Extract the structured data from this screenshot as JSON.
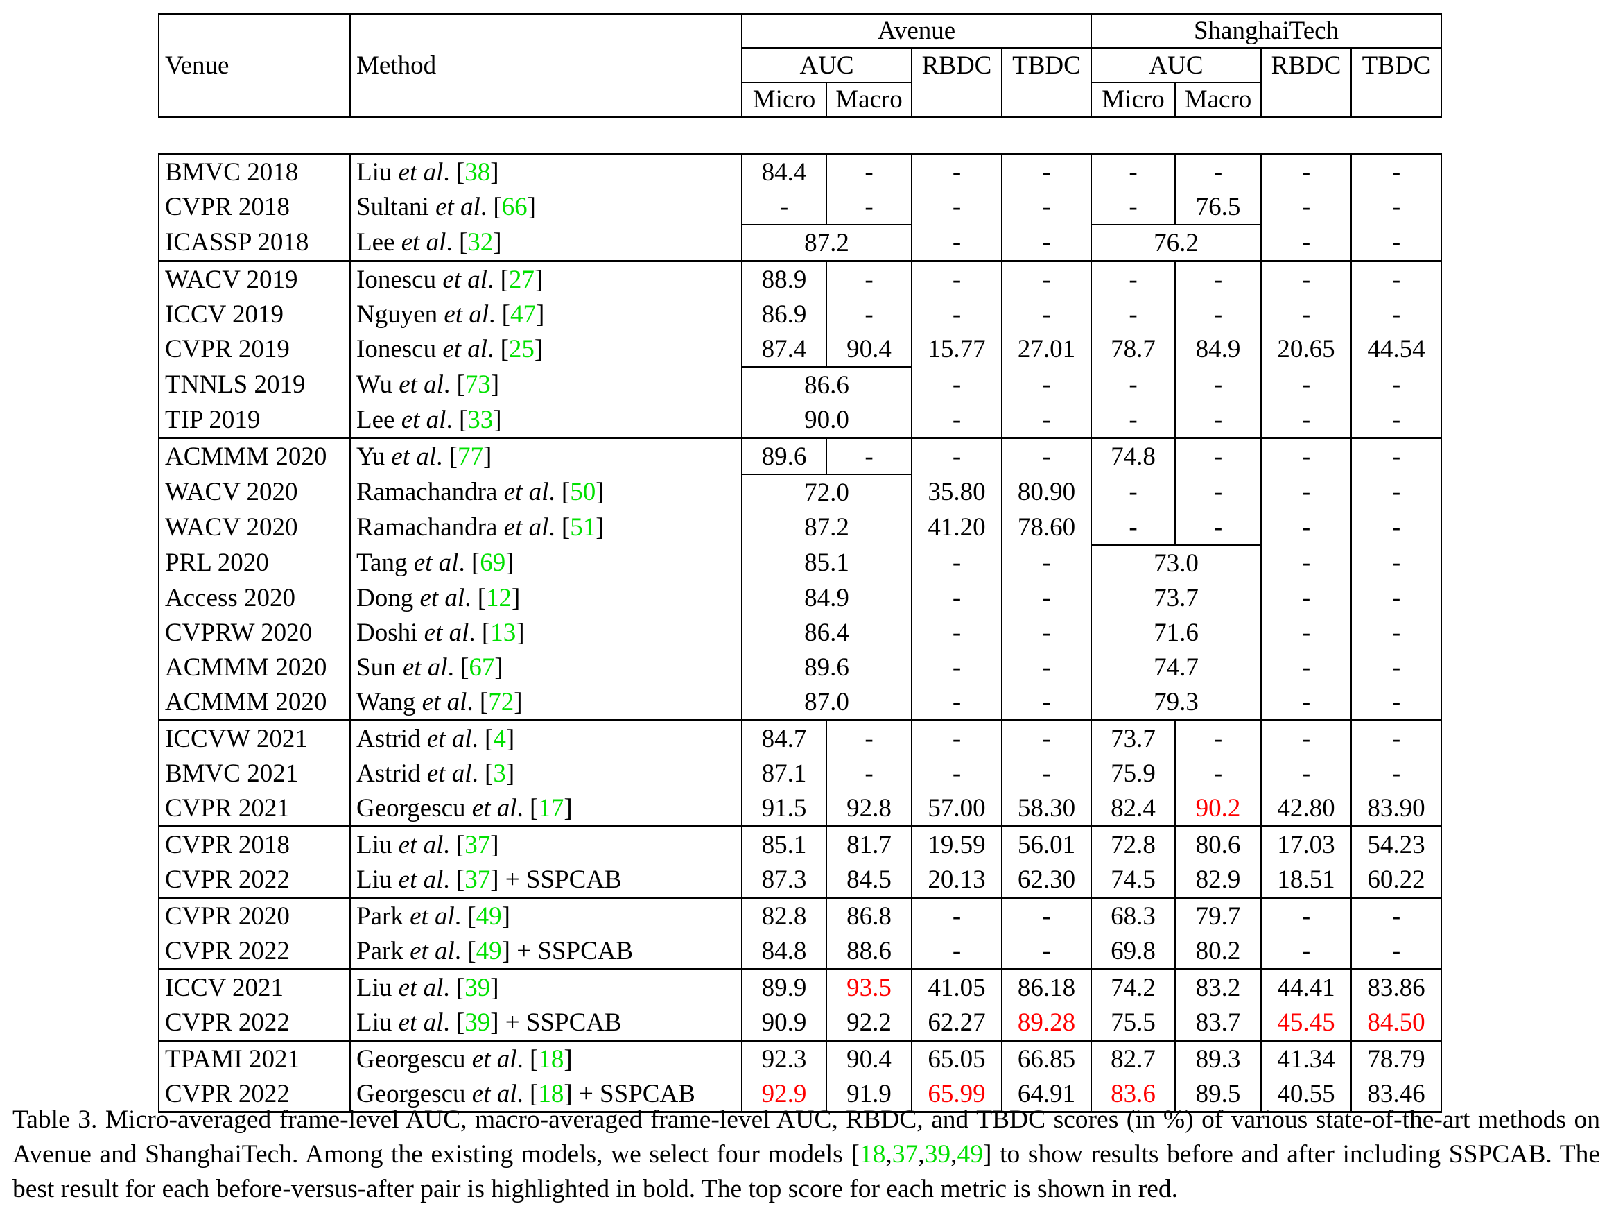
{
  "table": {
    "header": {
      "venue": "Venue",
      "method": "Method",
      "datasets": [
        "Avenue",
        "ShanghaiTech"
      ],
      "auc": "AUC",
      "rbdc": "RBDC",
      "tbdc": "TBDC",
      "micro": "Micro",
      "macro": "Macro"
    },
    "et_al": "et al",
    "rows": [
      {
        "venue": "BMVC 2018",
        "author": "Liu",
        "cite": "38",
        "suffix": "",
        "av_micro": "84.4",
        "av_macro": "-",
        "av_rbdc": "-",
        "av_tbdc": "-",
        "sh_micro": "-",
        "sh_macro": "-",
        "sh_rbdc": "-",
        "sh_tbdc": "-"
      },
      {
        "venue": "CVPR 2018",
        "author": "Sultani",
        "cite": "66",
        "suffix": "",
        "av_micro": "-",
        "av_macro": "-",
        "av_rbdc": "-",
        "av_tbdc": "-",
        "sh_micro": "-",
        "sh_macro": "76.5",
        "sh_rbdc": "-",
        "sh_tbdc": "-"
      },
      {
        "venue": "ICASSP 2018",
        "author": "Lee",
        "cite": "32",
        "suffix": "",
        "av_auc": "87.2",
        "av_rbdc": "-",
        "av_tbdc": "-",
        "sh_auc": "76.2",
        "sh_rbdc": "-",
        "sh_tbdc": "-"
      },
      {
        "venue": "WACV 2019",
        "author": "Ionescu",
        "cite": "27",
        "suffix": "",
        "av_micro": "88.9",
        "av_macro": "-",
        "av_rbdc": "-",
        "av_tbdc": "-",
        "sh_micro": "-",
        "sh_macro": "-",
        "sh_rbdc": "-",
        "sh_tbdc": "-"
      },
      {
        "venue": "ICCV 2019",
        "author": "Nguyen",
        "cite": "47",
        "suffix": "",
        "av_micro": "86.9",
        "av_macro": "-",
        "av_rbdc": "-",
        "av_tbdc": "-",
        "sh_micro": "-",
        "sh_macro": "-",
        "sh_rbdc": "-",
        "sh_tbdc": "-"
      },
      {
        "venue": "CVPR 2019",
        "author": "Ionescu",
        "cite": "25",
        "suffix": "",
        "av_micro": "87.4",
        "av_macro": "90.4",
        "av_rbdc": "15.77",
        "av_tbdc": "27.01",
        "sh_micro": "78.7",
        "sh_macro": "84.9",
        "sh_rbdc": "20.65",
        "sh_tbdc": "44.54"
      },
      {
        "venue": "TNNLS 2019",
        "author": "Wu",
        "cite": "73",
        "suffix": "",
        "av_auc": "86.6",
        "av_rbdc": "-",
        "av_tbdc": "-",
        "sh_micro": "-",
        "sh_macro": "-",
        "sh_rbdc": "-",
        "sh_tbdc": "-"
      },
      {
        "venue": "TIP 2019",
        "author": "Lee",
        "cite": "33",
        "suffix": "",
        "av_auc": "90.0",
        "av_rbdc": "-",
        "av_tbdc": "-",
        "sh_micro": "-",
        "sh_macro": "-",
        "sh_rbdc": "-",
        "sh_tbdc": "-"
      },
      {
        "venue": "ACMMM 2020",
        "author": "Yu",
        "cite": "77",
        "suffix": "",
        "av_micro": "89.6",
        "av_macro": "-",
        "av_rbdc": "-",
        "av_tbdc": "-",
        "sh_micro": "74.8",
        "sh_macro": "-",
        "sh_rbdc": "-",
        "sh_tbdc": "-"
      },
      {
        "venue": "WACV 2020",
        "author": "Ramachandra",
        "cite": "50",
        "suffix": "",
        "av_auc": "72.0",
        "av_rbdc": "35.80",
        "av_tbdc": "80.90",
        "sh_micro": "-",
        "sh_macro": "-",
        "sh_rbdc": "-",
        "sh_tbdc": "-"
      },
      {
        "venue": "WACV 2020",
        "author": "Ramachandra",
        "cite": "51",
        "suffix": "",
        "av_auc": "87.2",
        "av_rbdc": "41.20",
        "av_tbdc": "78.60",
        "sh_micro": "-",
        "sh_macro": "-",
        "sh_rbdc": "-",
        "sh_tbdc": "-"
      },
      {
        "venue": "PRL 2020",
        "author": "Tang",
        "cite": "69",
        "suffix": "",
        "av_auc": "85.1",
        "av_rbdc": "-",
        "av_tbdc": "-",
        "sh_auc": "73.0",
        "sh_rbdc": "-",
        "sh_tbdc": "-"
      },
      {
        "venue": "Access 2020",
        "author": "Dong",
        "cite": "12",
        "suffix": "",
        "av_auc": "84.9",
        "av_rbdc": "-",
        "av_tbdc": "-",
        "sh_auc": "73.7",
        "sh_rbdc": "-",
        "sh_tbdc": "-"
      },
      {
        "venue": "CVPRW 2020",
        "author": "Doshi",
        "cite": "13",
        "suffix": "",
        "av_auc": "86.4",
        "av_rbdc": "-",
        "av_tbdc": "-",
        "sh_auc": "71.6",
        "sh_rbdc": "-",
        "sh_tbdc": "-"
      },
      {
        "venue": "ACMMM 2020",
        "author": "Sun",
        "cite": "67",
        "suffix": "",
        "av_auc": "89.6",
        "av_rbdc": "-",
        "av_tbdc": "-",
        "sh_auc": "74.7",
        "sh_rbdc": "-",
        "sh_tbdc": "-"
      },
      {
        "venue": "ACMMM 2020",
        "author": "Wang",
        "cite": "72",
        "suffix": "",
        "av_auc": "87.0",
        "av_rbdc": "-",
        "av_tbdc": "-",
        "sh_auc": "79.3",
        "sh_rbdc": "-",
        "sh_tbdc": "-"
      },
      {
        "venue": "ICCVW 2021",
        "author": "Astrid",
        "cite": "4",
        "suffix": "",
        "av_micro": "84.7",
        "av_macro": "-",
        "av_rbdc": "-",
        "av_tbdc": "-",
        "sh_micro": "73.7",
        "sh_macro": "-",
        "sh_rbdc": "-",
        "sh_tbdc": "-"
      },
      {
        "venue": "BMVC 2021",
        "author": "Astrid",
        "cite": "3",
        "suffix": "",
        "av_micro": "87.1",
        "av_macro": "-",
        "av_rbdc": "-",
        "av_tbdc": "-",
        "sh_micro": "75.9",
        "sh_macro": "-",
        "sh_rbdc": "-",
        "sh_tbdc": "-"
      },
      {
        "venue": "CVPR 2021",
        "author": "Georgescu",
        "cite": "17",
        "suffix": "",
        "av_micro": "91.5",
        "av_macro": "92.8",
        "av_rbdc": "57.00",
        "av_tbdc": "58.30",
        "sh_micro": "82.4",
        "sh_macro": "90.2",
        "sh_rbdc": "42.80",
        "sh_tbdc": "83.90"
      },
      {
        "venue": "CVPR 2018",
        "author": "Liu",
        "cite": "37",
        "suffix": "",
        "av_micro": "85.1",
        "av_macro": "81.7",
        "av_rbdc": "19.59",
        "av_tbdc": "56.01",
        "sh_micro": "72.8",
        "sh_macro": "80.6",
        "sh_rbdc": "17.03",
        "sh_tbdc": "54.23"
      },
      {
        "venue": "CVPR 2022",
        "author": "Liu",
        "cite": "37",
        "suffix": " + SSPCAB",
        "av_micro": "87.3",
        "av_macro": "84.5",
        "av_rbdc": "20.13",
        "av_tbdc": "62.30",
        "sh_micro": "74.5",
        "sh_macro": "82.9",
        "sh_rbdc": "18.51",
        "sh_tbdc": "60.22"
      },
      {
        "venue": "CVPR 2020",
        "author": "Park",
        "cite": "49",
        "suffix": "",
        "av_micro": "82.8",
        "av_macro": "86.8",
        "av_rbdc": "-",
        "av_tbdc": "-",
        "sh_micro": "68.3",
        "sh_macro": "79.7",
        "sh_rbdc": "-",
        "sh_tbdc": "-"
      },
      {
        "venue": "CVPR 2022",
        "author": "Park",
        "cite": "49",
        "suffix": " + SSPCAB",
        "av_micro": "84.8",
        "av_macro": "88.6",
        "av_rbdc": "-",
        "av_tbdc": "-",
        "sh_micro": "69.8",
        "sh_macro": "80.2",
        "sh_rbdc": "-",
        "sh_tbdc": "-"
      },
      {
        "venue": "ICCV 2021",
        "author": "Liu",
        "cite": "39",
        "suffix": "",
        "av_micro": "89.9",
        "av_macro": "93.5",
        "av_rbdc": "41.05",
        "av_tbdc": "86.18",
        "sh_micro": "74.2",
        "sh_macro": "83.2",
        "sh_rbdc": "44.41",
        "sh_tbdc": "83.86"
      },
      {
        "venue": "CVPR 2022",
        "author": "Liu",
        "cite": "39",
        "suffix": " + SSPCAB",
        "av_micro": "90.9",
        "av_macro": "92.2",
        "av_rbdc": "62.27",
        "av_tbdc": "89.28",
        "sh_micro": "75.5",
        "sh_macro": "83.7",
        "sh_rbdc": "45.45",
        "sh_tbdc": "84.50"
      },
      {
        "venue": "TPAMI 2021",
        "author": "Georgescu",
        "cite": "18",
        "suffix": "",
        "av_micro": "92.3",
        "av_macro": "90.4",
        "av_rbdc": "65.05",
        "av_tbdc": "66.85",
        "sh_micro": "82.7",
        "sh_macro": "89.3",
        "sh_rbdc": "41.34",
        "sh_tbdc": "78.79"
      },
      {
        "venue": "CVPR 2022",
        "author": "Georgescu",
        "cite": "18",
        "suffix": " + SSPCAB",
        "av_micro": "92.9",
        "av_macro": "91.9",
        "av_rbdc": "65.99",
        "av_tbdc": "64.91",
        "sh_micro": "83.6",
        "sh_macro": "89.5",
        "sh_rbdc": "40.55",
        "sh_tbdc": "83.46"
      }
    ]
  },
  "caption": {
    "part1": "Table 3. Micro-averaged frame-level AUC, macro-averaged frame-level AUC, RBDC, and TBDC scores (in %) of various state-of-the-art methods on Avenue and ShanghaiTech. Among the existing models, we select four models [",
    "cites": [
      "18",
      "37",
      "39",
      "49"
    ],
    "part2": "] to show results before and after including SSPCAB. The best result for each before-versus-after pair is highlighted in bold. The top score for each metric is shown in red."
  },
  "colors": {
    "citation": "#00e000",
    "top_score": "#ff0000"
  }
}
